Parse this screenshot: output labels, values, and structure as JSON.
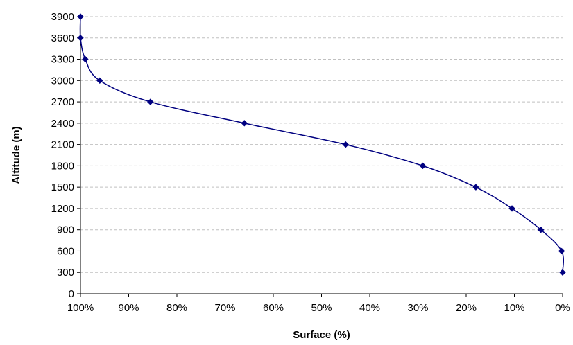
{
  "chart_data": {
    "type": "line",
    "title": "",
    "xlabel": "Surface (%)",
    "ylabel": "Altitude (m)",
    "xlim": [
      100,
      0
    ],
    "ylim": [
      0,
      3900
    ],
    "x_reversed": true,
    "x_unit": "%",
    "x_ticks": [
      100,
      90,
      80,
      70,
      60,
      50,
      40,
      30,
      20,
      10,
      0
    ],
    "y_ticks": [
      0,
      300,
      600,
      900,
      1200,
      1500,
      1800,
      2100,
      2400,
      2700,
      3000,
      3300,
      3600,
      3900
    ],
    "grid": "horizontal dashed",
    "legend": "none",
    "line_style": "smoothed",
    "marker": "diamond",
    "series": [
      {
        "color": "#000080",
        "points": [
          {
            "x": 0,
            "y": 300
          },
          {
            "x": 0.2,
            "y": 600
          },
          {
            "x": 4.5,
            "y": 900
          },
          {
            "x": 10.5,
            "y": 1200
          },
          {
            "x": 18,
            "y": 1500
          },
          {
            "x": 29,
            "y": 1800
          },
          {
            "x": 45,
            "y": 2100
          },
          {
            "x": 66,
            "y": 2400
          },
          {
            "x": 85.5,
            "y": 2700
          },
          {
            "x": 96,
            "y": 3000
          },
          {
            "x": 99,
            "y": 3300
          },
          {
            "x": 100,
            "y": 3600
          },
          {
            "x": 100,
            "y": 3900
          }
        ]
      }
    ]
  }
}
